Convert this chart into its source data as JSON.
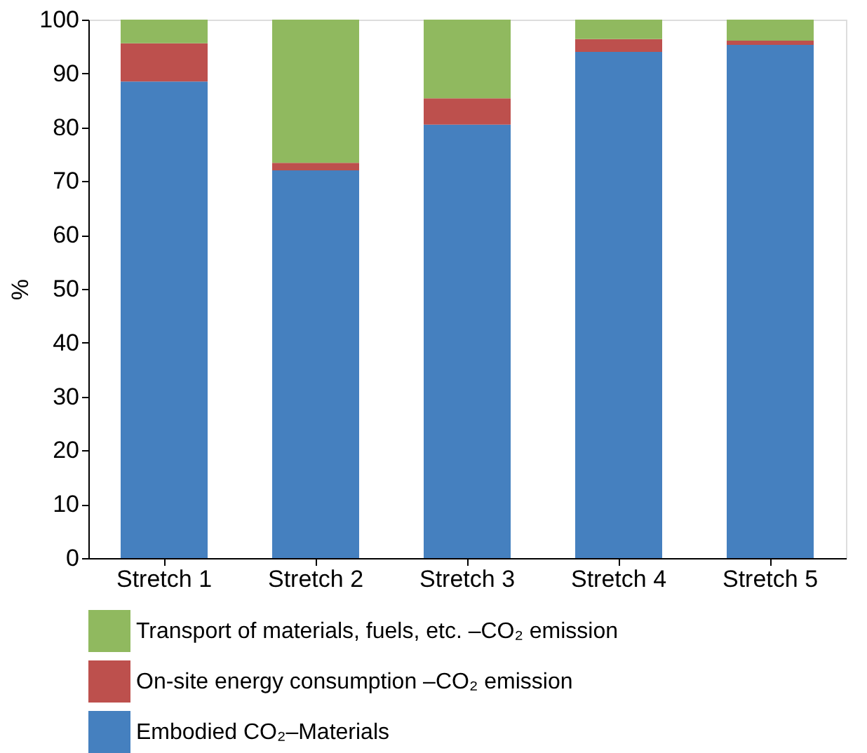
{
  "chart_data": {
    "type": "bar",
    "stacked": true,
    "ylabel": "%",
    "categories": [
      "Stretch 1",
      "Stretch 2",
      "Stretch 3",
      "Stretch 4",
      "Stretch 5"
    ],
    "series": [
      {
        "name": "Embodied CO₂–Materials",
        "color": "#4580bf",
        "values": [
          88.5,
          72,
          80.5,
          94,
          95.3
        ]
      },
      {
        "name": "On-site energy consumption –CO₂ emission",
        "color": "#bd504d",
        "values": [
          7.1,
          1.4,
          4.9,
          2.4,
          0.8
        ]
      },
      {
        "name": "Transport of materials, fuels, etc. –CO₂ emission",
        "color": "#90b95f",
        "values": [
          4.4,
          26.6,
          14.6,
          3.6,
          3.9
        ]
      }
    ],
    "ylim": [
      0,
      100
    ],
    "yticks": [
      0,
      10,
      20,
      30,
      40,
      50,
      60,
      70,
      80,
      90,
      100
    ],
    "grid": false,
    "legend": "bottom"
  }
}
